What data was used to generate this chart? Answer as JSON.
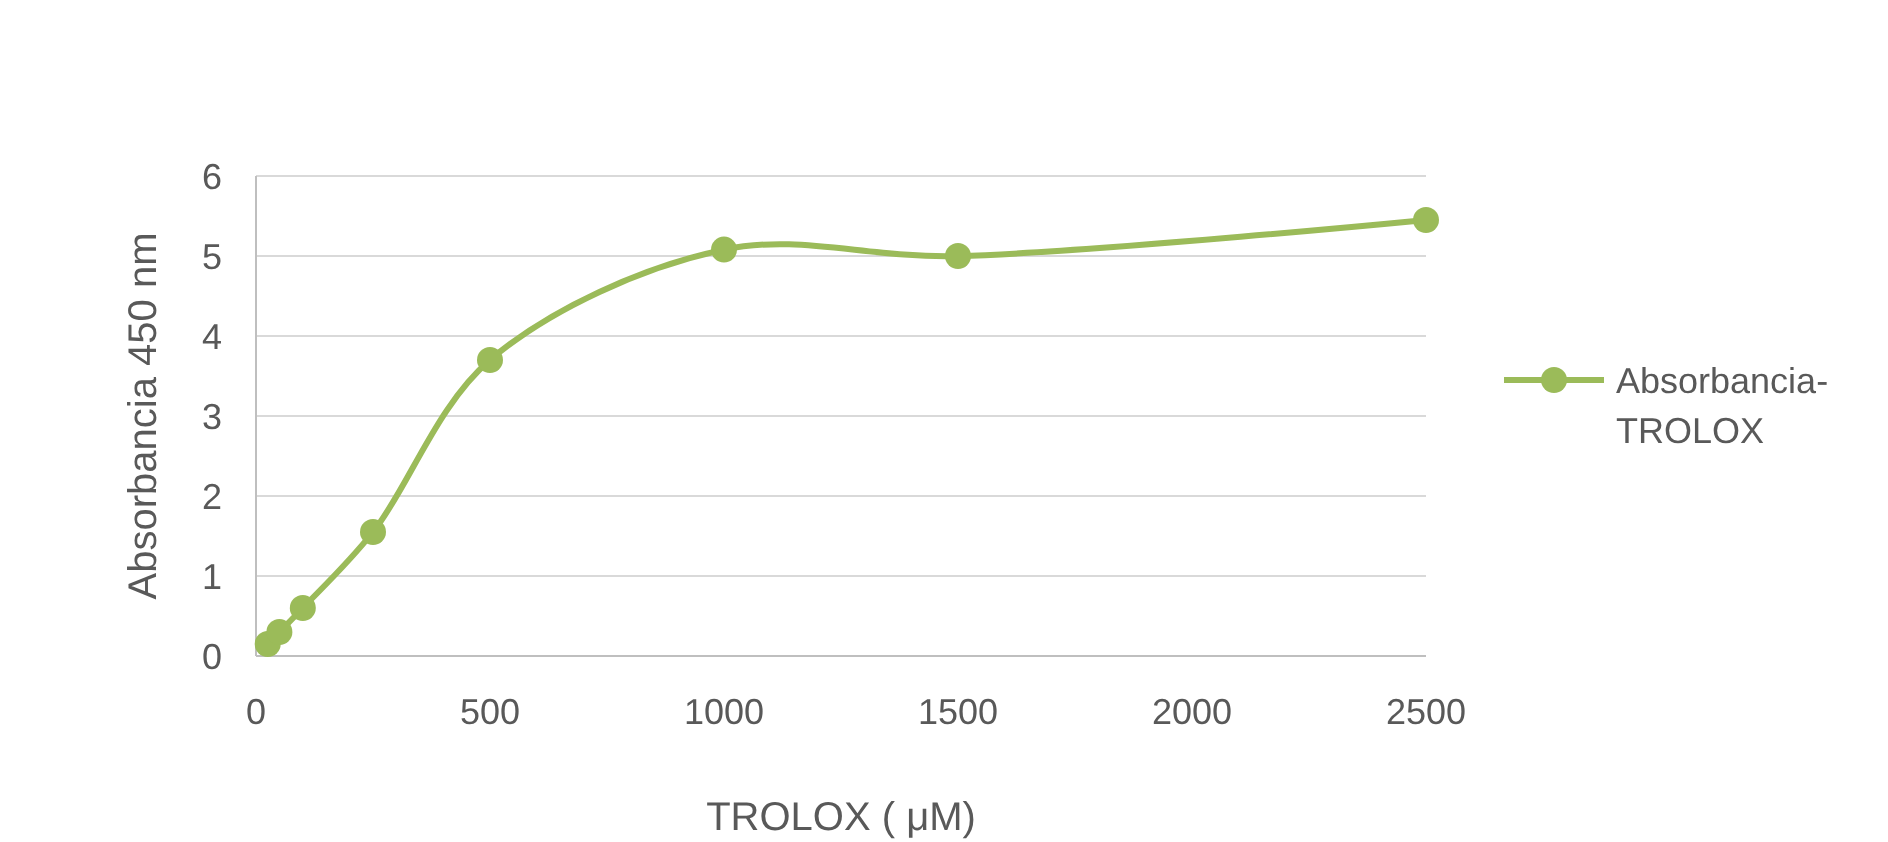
{
  "chart_data": {
    "type": "line",
    "xlabel": "TROLOX ( μM)",
    "ylabel": "Absorbancia 450 nm",
    "x": [
      25,
      50,
      100,
      250,
      500,
      1000,
      1500,
      2500
    ],
    "series": [
      {
        "name": "Absorbancia-TROLOX",
        "color": "#9bbb59",
        "values": [
          0.15,
          0.3,
          0.6,
          1.55,
          3.7,
          5.08,
          5.0,
          5.45
        ]
      }
    ],
    "xlim": [
      0,
      2500
    ],
    "xticks": [
      0,
      500,
      1000,
      1500,
      2000,
      2500
    ],
    "ylim": [
      0,
      6
    ],
    "yticks": [
      0,
      1,
      2,
      3,
      4,
      5,
      6
    ],
    "grid": "y",
    "legend": "right",
    "marker": "circle",
    "line_style": "solid"
  }
}
